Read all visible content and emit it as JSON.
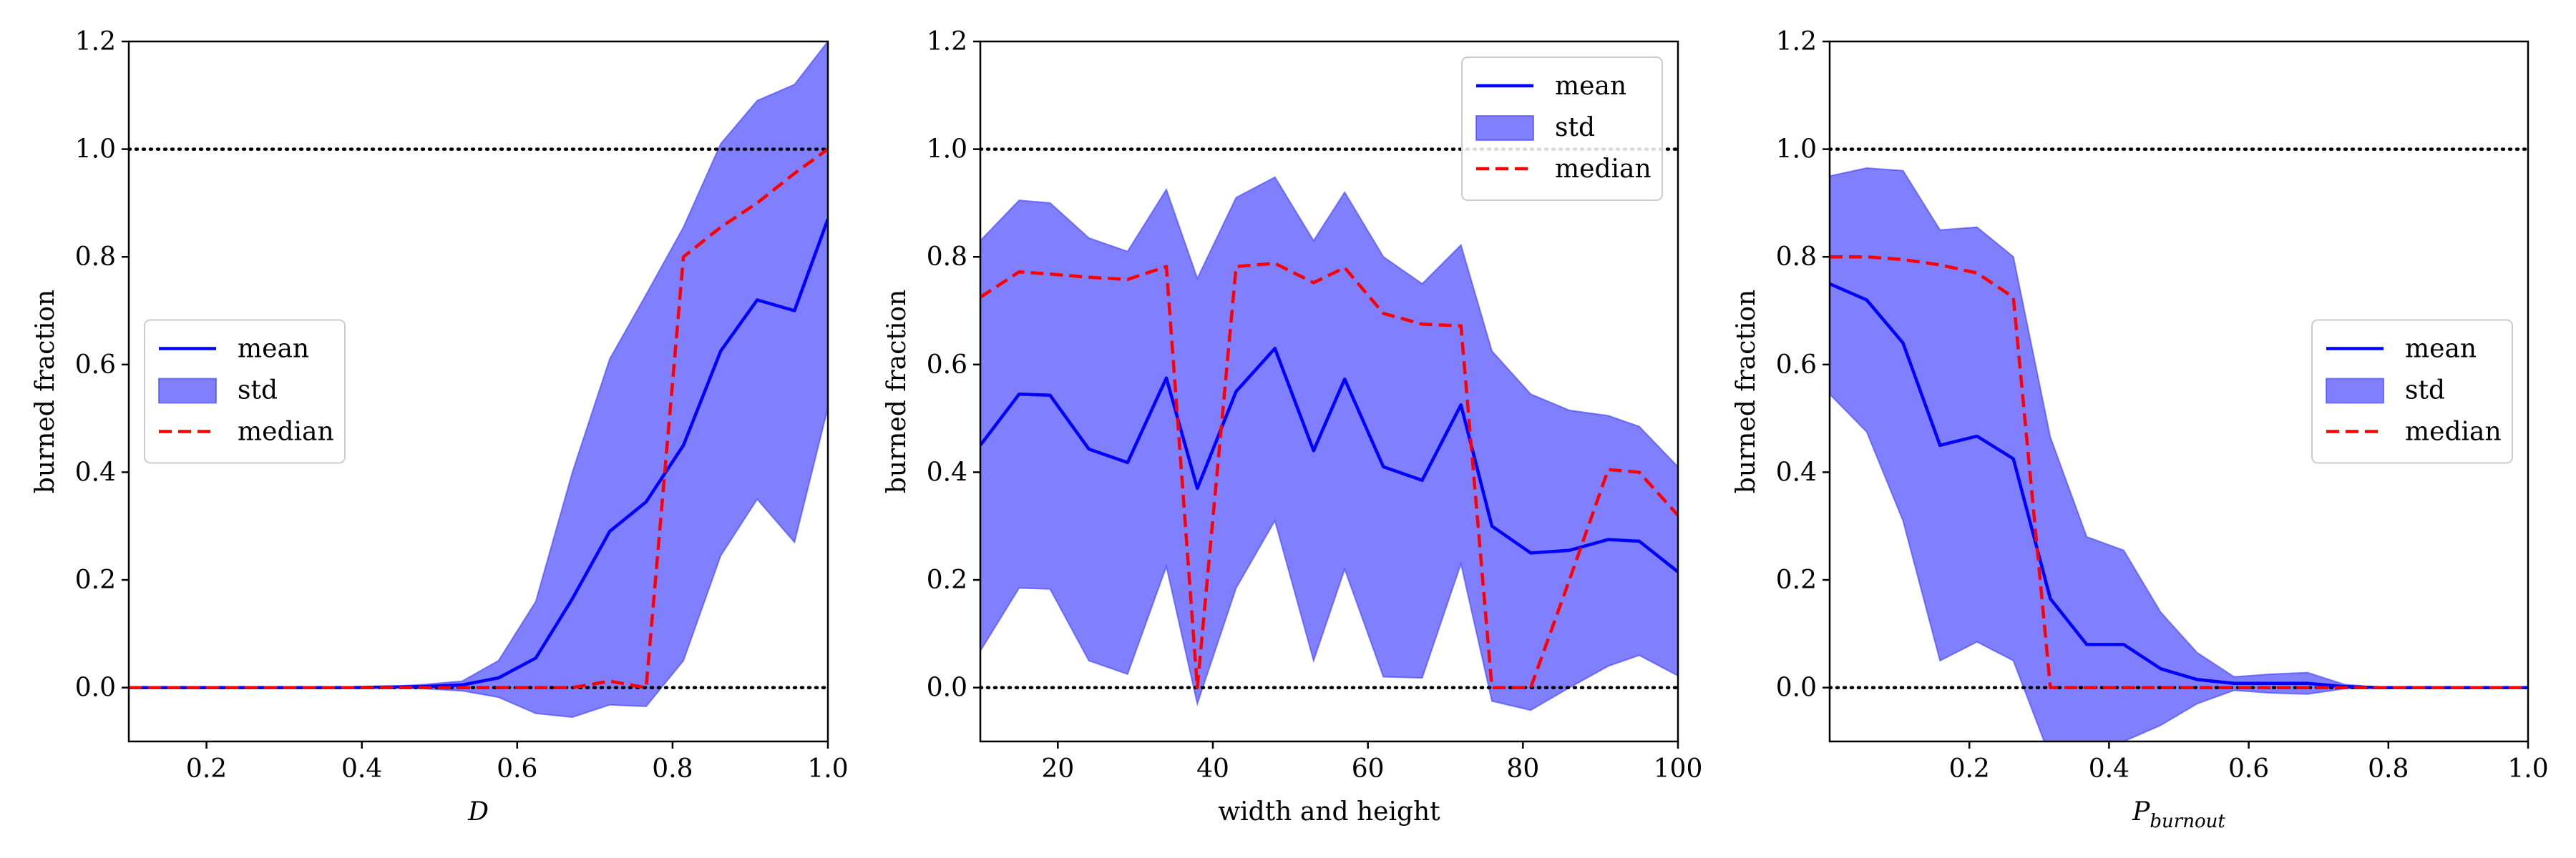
{
  "chart_data": [
    {
      "type": "line",
      "xlabel": "D",
      "xlabel_italic": true,
      "ylabel": "burned fraction",
      "xlim": [
        0.1,
        1.0
      ],
      "ylim": [
        -0.1,
        1.2
      ],
      "xticks": [
        0.2,
        0.4,
        0.6,
        0.8,
        1.0
      ],
      "xtick_labels": [
        "0.2",
        "0.4",
        "0.6",
        "0.8",
        "1.0"
      ],
      "yticks": [
        0.0,
        0.2,
        0.4,
        0.6,
        0.8,
        1.0,
        1.2
      ],
      "ytick_labels": [
        "0.0",
        "0.2",
        "0.4",
        "0.6",
        "0.8",
        "1.0",
        "1.2"
      ],
      "hlines": [
        0.0,
        1.0
      ],
      "legend": {
        "position": "center-left",
        "entries": [
          "mean",
          "std",
          "median"
        ]
      },
      "x": [
        0.1,
        0.148,
        0.195,
        0.243,
        0.291,
        0.338,
        0.386,
        0.434,
        0.481,
        0.529,
        0.576,
        0.624,
        0.671,
        0.719,
        0.766,
        0.814,
        0.862,
        0.909,
        0.957,
        1.0
      ],
      "series": [
        {
          "name": "mean",
          "style": "solid",
          "color": "#0000ff",
          "values": [
            0.0,
            0.0,
            0.0,
            0.0,
            0.0,
            0.0,
            0.0,
            0.001,
            0.002,
            0.005,
            0.018,
            0.055,
            0.165,
            0.29,
            0.345,
            0.45,
            0.625,
            0.72,
            0.7,
            0.87
          ]
        },
        {
          "name": "std",
          "type": "band",
          "color": "#8080ff",
          "lower": [
            0.0,
            0.0,
            0.0,
            0.0,
            0.0,
            0.0,
            0.0,
            0.0,
            -0.002,
            -0.006,
            -0.018,
            -0.048,
            -0.055,
            -0.032,
            -0.035,
            0.05,
            0.245,
            0.35,
            0.27,
            0.52
          ],
          "upper": [
            0.0,
            0.0,
            0.0,
            0.0,
            0.0,
            0.0,
            0.0,
            0.002,
            0.006,
            0.012,
            0.05,
            0.16,
            0.4,
            0.61,
            0.73,
            0.855,
            1.01,
            1.09,
            1.12,
            1.2
          ]
        },
        {
          "name": "median",
          "style": "dashed",
          "color": "#ff0000",
          "values": [
            0.0,
            0.0,
            0.0,
            0.0,
            0.0,
            0.0,
            0.0,
            0.0,
            0.0,
            0.0,
            0.0,
            0.0,
            0.0,
            0.012,
            0.0,
            0.8,
            0.855,
            0.9,
            0.955,
            1.0
          ]
        }
      ]
    },
    {
      "type": "line",
      "xlabel": "width and height",
      "xlabel_italic": false,
      "ylabel": "burned fraction",
      "xlim": [
        10,
        100
      ],
      "ylim": [
        -0.1,
        1.2
      ],
      "xticks": [
        20,
        40,
        60,
        80,
        100
      ],
      "xtick_labels": [
        "20",
        "40",
        "60",
        "80",
        "100"
      ],
      "yticks": [
        0.0,
        0.2,
        0.4,
        0.6,
        0.8,
        1.0,
        1.2
      ],
      "ytick_labels": [
        "0.0",
        "0.2",
        "0.4",
        "0.6",
        "0.8",
        "1.0",
        "1.2"
      ],
      "hlines": [
        0.0,
        1.0
      ],
      "legend": {
        "position": "upper-right",
        "entries": [
          "mean",
          "std",
          "median"
        ]
      },
      "x": [
        10,
        15,
        19,
        24,
        29,
        34,
        38,
        43,
        48,
        53,
        57,
        62,
        67,
        72,
        76,
        81,
        86,
        91,
        95,
        100
      ],
      "series": [
        {
          "name": "mean",
          "style": "solid",
          "color": "#0000ff",
          "values": [
            0.45,
            0.545,
            0.543,
            0.443,
            0.418,
            0.575,
            0.37,
            0.55,
            0.63,
            0.44,
            0.573,
            0.41,
            0.385,
            0.525,
            0.3,
            0.25,
            0.255,
            0.275,
            0.272,
            0.215
          ]
        },
        {
          "name": "std",
          "type": "band",
          "color": "#8080ff",
          "lower": [
            0.068,
            0.185,
            0.183,
            0.05,
            0.025,
            0.225,
            -0.03,
            0.185,
            0.31,
            0.05,
            0.22,
            0.02,
            0.018,
            0.23,
            -0.025,
            -0.042,
            0.0,
            0.04,
            0.06,
            0.022
          ],
          "upper": [
            0.83,
            0.905,
            0.9,
            0.835,
            0.81,
            0.925,
            0.76,
            0.91,
            0.948,
            0.83,
            0.92,
            0.8,
            0.75,
            0.822,
            0.625,
            0.545,
            0.515,
            0.505,
            0.485,
            0.41
          ]
        },
        {
          "name": "median",
          "style": "dashed",
          "color": "#ff0000",
          "values": [
            0.725,
            0.772,
            0.768,
            0.762,
            0.758,
            0.782,
            0.0,
            0.782,
            0.788,
            0.752,
            0.78,
            0.695,
            0.675,
            0.672,
            0.0,
            0.0,
            0.2,
            0.405,
            0.4,
            0.32
          ]
        }
      ]
    },
    {
      "type": "line",
      "xlabel": "P",
      "xlabel_subscript": "burnout",
      "xlabel_italic": true,
      "ylabel": "burned fraction",
      "xlim": [
        0.0,
        1.0
      ],
      "ylim": [
        -0.1,
        1.2
      ],
      "xticks": [
        0.2,
        0.4,
        0.6,
        0.8,
        1.0
      ],
      "xtick_labels": [
        "0.2",
        "0.4",
        "0.6",
        "0.8",
        "1.0"
      ],
      "yticks": [
        0.0,
        0.2,
        0.4,
        0.6,
        0.8,
        1.0,
        1.2
      ],
      "ytick_labels": [
        "0.0",
        "0.2",
        "0.4",
        "0.6",
        "0.8",
        "1.0",
        "1.2"
      ],
      "hlines": [
        0.0,
        1.0
      ],
      "legend": {
        "position": "center-right",
        "entries": [
          "mean",
          "std",
          "median"
        ]
      },
      "x": [
        0.0,
        0.053,
        0.105,
        0.158,
        0.211,
        0.263,
        0.316,
        0.368,
        0.421,
        0.474,
        0.526,
        0.579,
        0.632,
        0.684,
        0.737,
        0.789,
        0.842,
        0.895,
        0.947,
        1.0
      ],
      "series": [
        {
          "name": "mean",
          "style": "solid",
          "color": "#0000ff",
          "values": [
            0.75,
            0.72,
            0.64,
            0.45,
            0.467,
            0.425,
            0.165,
            0.08,
            0.08,
            0.035,
            0.015,
            0.008,
            0.008,
            0.008,
            0.002,
            0.0,
            0.0,
            0.0,
            0.0,
            0.0
          ]
        },
        {
          "name": "std",
          "type": "band",
          "color": "#8080ff",
          "lower": [
            0.545,
            0.475,
            0.31,
            0.05,
            0.085,
            0.05,
            -0.13,
            -0.11,
            -0.1,
            -0.07,
            -0.03,
            -0.005,
            -0.01,
            -0.012,
            -0.002,
            0.0,
            0.0,
            0.0,
            0.0,
            0.0
          ],
          "upper": [
            0.95,
            0.965,
            0.96,
            0.85,
            0.855,
            0.8,
            0.465,
            0.28,
            0.255,
            0.14,
            0.065,
            0.02,
            0.025,
            0.028,
            0.006,
            0.0,
            0.0,
            0.0,
            0.0,
            0.0
          ]
        },
        {
          "name": "median",
          "style": "dashed",
          "color": "#ff0000",
          "values": [
            0.8,
            0.8,
            0.795,
            0.785,
            0.77,
            0.725,
            0.0,
            0.0,
            0.0,
            0.0,
            0.0,
            0.0,
            0.0,
            0.0,
            0.0,
            0.0,
            0.0,
            0.0,
            0.0,
            0.0
          ]
        }
      ]
    }
  ]
}
